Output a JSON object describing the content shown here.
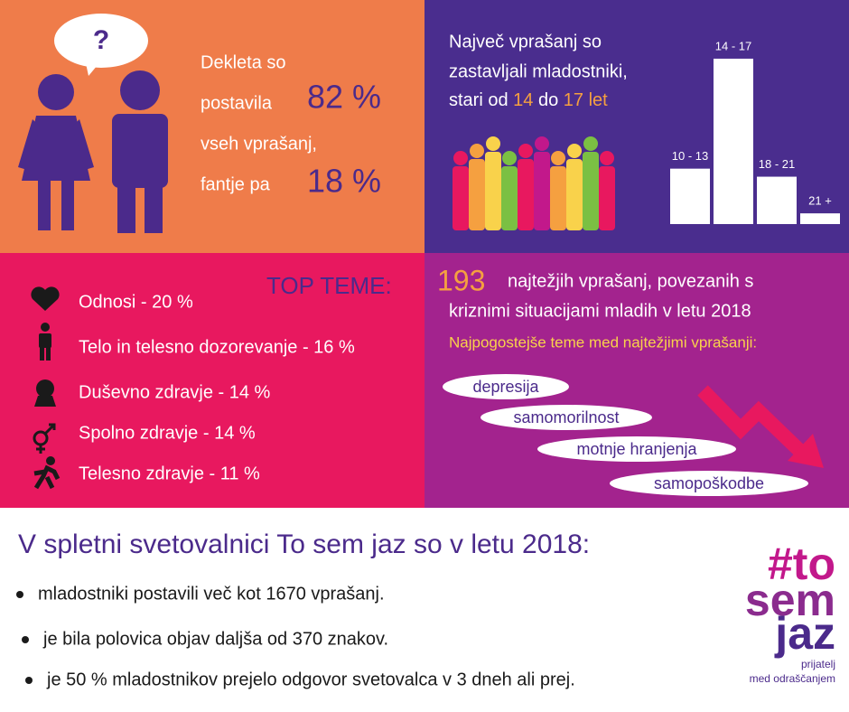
{
  "bubble": "?",
  "gender": {
    "line1": "Dekleta so",
    "line2": "postavila",
    "girls": "82 %",
    "line3": "vseh vprašanj,",
    "line4": "fantje pa",
    "boys": "18 %"
  },
  "ages": {
    "line1": "Največ vprašanj so",
    "line2": "zastavljali mladostniki,",
    "line3": [
      "stari od ",
      "14",
      " do ",
      "17 let"
    ]
  },
  "chart_data": {
    "type": "bar",
    "categories": [
      "10 - 13",
      "14 - 17",
      "18 - 21",
      "21 +"
    ],
    "values": [
      62,
      185,
      53,
      12
    ],
    "ylim": [
      0,
      190
    ],
    "color": "#ffffff"
  },
  "topics": {
    "title": "TOP TEME:",
    "items": [
      "Odnosi - 20 %",
      "Telo in telesno dozorevanje - 16 %",
      "Duševno zdravje - 14 %",
      "Spolno zdravje - 14 %",
      "Telesno zdravje - 11 %"
    ]
  },
  "crisis": {
    "count": "193",
    "line1": "najtežjih vprašanj, povezanih s",
    "line2": "kriznimi situacijami mladih v letu 2018",
    "subtitle": "Najpogostejše teme med najtežjimi vprašanji:",
    "tags": [
      "depresija",
      "samomorilnost",
      "motnje hranjenja",
      "samopoškodbe"
    ]
  },
  "summary": {
    "title": "V spletni svetovalnici To sem jaz so v letu 2018:",
    "bullets": [
      "mladostniki postavili več kot 1670 vprašanj.",
      "je bila polovica objav daljša od 370 znakov.",
      "je 50 % mladostnikov prejelo odgovor svetovalca v 3 dneh ali prej."
    ]
  },
  "logo": {
    "line1": "#to",
    "line2": "sem",
    "line3": "jaz",
    "tagline1": "prijatelj",
    "tagline2": "med odraščanjem"
  }
}
